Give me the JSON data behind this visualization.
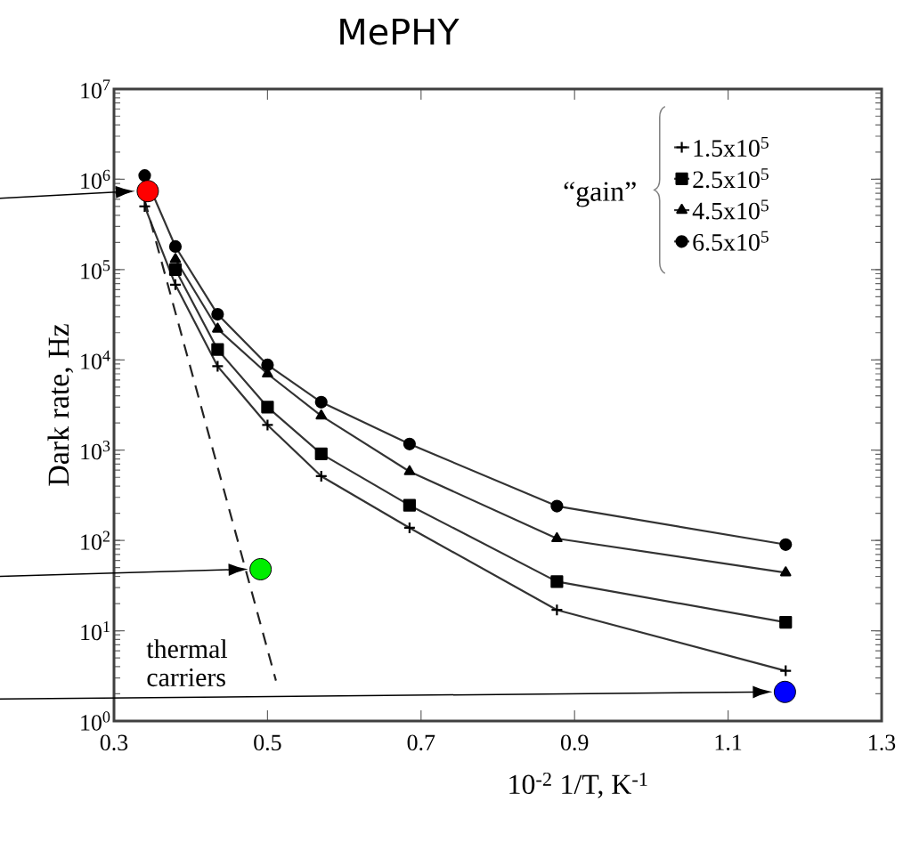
{
  "chart_data": {
    "type": "line",
    "title": "MePHY",
    "xlabel": "10$^{-2}$ 1/T, K$^{-1}$",
    "ylabel": "Dark   rate, Hz",
    "legend_title": "“gain”",
    "x": [
      0.34,
      0.38,
      0.435,
      0.5,
      0.57,
      0.685,
      0.877,
      1.175
    ],
    "series": [
      {
        "name": "1.5x10$^{5}$",
        "color": "#333333",
        "marker": "cross",
        "values": [
          500000,
          68000,
          8500,
          1900,
          515,
          138,
          17,
          3.6
        ]
      },
      {
        "name": "2.5x10$^{5}$",
        "color": "#333333",
        "marker": "square",
        "values": [
          null,
          100000,
          13000,
          3000,
          910,
          245,
          35,
          12.4
        ]
      },
      {
        "name": "4.5x10$^{5}$",
        "color": "#333333",
        "marker": "triangle",
        "values": [
          null,
          130000,
          22000,
          7000,
          2400,
          580,
          105,
          44
        ]
      },
      {
        "name": "6.5x10$^{5}$",
        "color": "#333333",
        "marker": "circle",
        "values": [
          1100000,
          180000,
          32000,
          8800,
          3400,
          1170,
          240,
          90
        ]
      },
      {
        "name": "thermal carriers",
        "type": "line",
        "color": "#222222",
        "marker": "none",
        "line_style": "dashed",
        "x": [
          0.34,
          0.511
        ],
        "values": [
          590000,
          2.8
        ]
      },
      {
        "type": "scatter",
        "marker": "circle",
        "x": [
          0.344,
          0.491,
          1.174
        ],
        "values": [
          740000,
          48,
          2.1
        ],
        "colors": [
          "#ff0000",
          "#00ee00",
          "#0000ff"
        ]
      }
    ],
    "xlim": [
      0.3,
      1.3
    ],
    "xticks": [
      0.3,
      0.5,
      0.7,
      0.9,
      1.1,
      1.3
    ],
    "log": "y",
    "ylim": [
      1,
      10000000
    ],
    "yticks": [
      {
        "value": 1,
        "label": "10$^{0}$"
      },
      {
        "value": 10,
        "label": "10$^{1}$"
      },
      {
        "value": 100,
        "label": "10$^{2}$"
      },
      {
        "value": 1000,
        "label": "10$^{3}$"
      },
      {
        "value": 10000,
        "label": "10$^{4}$"
      },
      {
        "value": 100000,
        "label": "10$^{5}$"
      },
      {
        "value": 1000000,
        "label": "10$^{6}$"
      },
      {
        "value": 10000000,
        "label": "10$^{7}$"
      }
    ],
    "legend": "top right"
  }
}
